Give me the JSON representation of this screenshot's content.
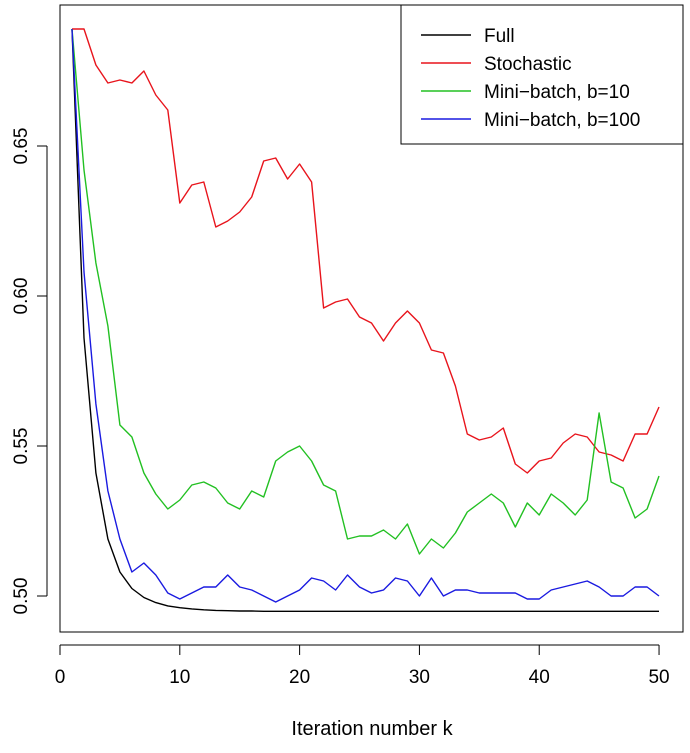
{
  "chart_data": {
    "type": "line",
    "title": "",
    "xlabel": "Iteration number k",
    "ylabel": "",
    "xlim": [
      0,
      52
    ],
    "ylim": [
      0.488,
      0.697
    ],
    "xticks": [
      0,
      10,
      20,
      30,
      40,
      50
    ],
    "xtick_labels": [
      "0",
      "10",
      "20",
      "30",
      "40",
      "50"
    ],
    "yticks": [
      0.5,
      0.55,
      0.6,
      0.65
    ],
    "ytick_labels": [
      "0.50",
      "0.55",
      "0.60",
      "0.65"
    ],
    "grid": false,
    "legend_position": "top-right",
    "x": [
      1,
      2,
      3,
      4,
      5,
      6,
      7,
      8,
      9,
      10,
      11,
      12,
      13,
      14,
      15,
      16,
      17,
      18,
      19,
      20,
      21,
      22,
      23,
      24,
      25,
      26,
      27,
      28,
      29,
      30,
      31,
      32,
      33,
      34,
      35,
      36,
      37,
      38,
      39,
      40,
      41,
      42,
      43,
      44,
      45,
      46,
      47,
      48,
      49,
      50
    ],
    "series": [
      {
        "name": "Full",
        "color": "#000000",
        "values": [
          0.689,
          0.586,
          0.541,
          0.519,
          0.508,
          0.5025,
          0.4995,
          0.4978,
          0.4967,
          0.4961,
          0.4957,
          0.4954,
          0.4952,
          0.4951,
          0.495,
          0.495,
          0.4949,
          0.4949,
          0.4949,
          0.4949,
          0.4949,
          0.4949,
          0.4949,
          0.4949,
          0.4949,
          0.4949,
          0.4949,
          0.4949,
          0.4949,
          0.4949,
          0.4949,
          0.4949,
          0.4949,
          0.4949,
          0.4949,
          0.4949,
          0.4949,
          0.4949,
          0.4949,
          0.4949,
          0.4949,
          0.4949,
          0.4949,
          0.4949,
          0.4949,
          0.4949,
          0.4949,
          0.4949,
          0.4949,
          0.4949
        ]
      },
      {
        "name": "Stochastic",
        "color": "#e8141c",
        "values": [
          0.689,
          0.689,
          0.677,
          0.671,
          0.672,
          0.671,
          0.675,
          0.667,
          0.662,
          0.631,
          0.637,
          0.638,
          0.623,
          0.625,
          0.628,
          0.633,
          0.645,
          0.646,
          0.639,
          0.644,
          0.638,
          0.596,
          0.598,
          0.599,
          0.593,
          0.591,
          0.585,
          0.591,
          0.595,
          0.591,
          0.582,
          0.581,
          0.57,
          0.554,
          0.552,
          0.553,
          0.556,
          0.544,
          0.541,
          0.545,
          0.546,
          0.551,
          0.554,
          0.553,
          0.548,
          0.547,
          0.545,
          0.554,
          0.554,
          0.563
        ]
      },
      {
        "name": "Mini−batch, b=10",
        "color": "#22c022",
        "values": [
          0.689,
          0.642,
          0.611,
          0.59,
          0.557,
          0.553,
          0.541,
          0.534,
          0.529,
          0.532,
          0.537,
          0.538,
          0.536,
          0.531,
          0.529,
          0.535,
          0.533,
          0.545,
          0.548,
          0.55,
          0.545,
          0.537,
          0.535,
          0.519,
          0.52,
          0.52,
          0.522,
          0.519,
          0.524,
          0.514,
          0.519,
          0.516,
          0.521,
          0.528,
          0.531,
          0.534,
          0.531,
          0.523,
          0.531,
          0.527,
          0.534,
          0.531,
          0.527,
          0.532,
          0.561,
          0.538,
          0.536,
          0.526,
          0.529,
          0.54
        ]
      },
      {
        "name": "Mini−batch, b=100",
        "color": "#1a1ae0",
        "values": [
          0.689,
          0.608,
          0.564,
          0.535,
          0.519,
          0.508,
          0.511,
          0.507,
          0.501,
          0.499,
          0.501,
          0.503,
          0.503,
          0.507,
          0.503,
          0.502,
          0.5,
          0.498,
          0.5,
          0.502,
          0.506,
          0.505,
          0.502,
          0.507,
          0.503,
          0.501,
          0.502,
          0.506,
          0.505,
          0.5,
          0.506,
          0.5,
          0.502,
          0.502,
          0.501,
          0.501,
          0.501,
          0.501,
          0.499,
          0.499,
          0.502,
          0.503,
          0.504,
          0.505,
          0.503,
          0.5,
          0.5,
          0.503,
          0.503,
          0.5
        ]
      }
    ]
  }
}
